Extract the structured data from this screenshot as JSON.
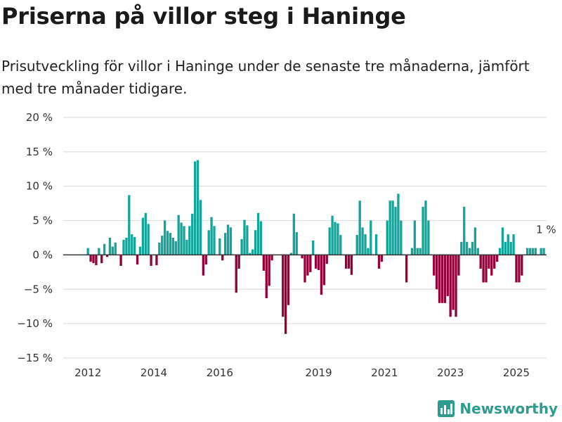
{
  "header": {
    "title": "Priserna på villor steg i Haninge",
    "subtitle": "Prisutveckling för villor i Haninge under de senaste tre månaderna, jämfört med tre månader tidigare."
  },
  "brand": {
    "name": "Newsworthy",
    "color": "#2e9b8f",
    "icon": "bar-chart-logo-icon"
  },
  "chart_data": {
    "type": "bar",
    "x_start": "2012-01",
    "x_end": "2025-08",
    "xlim": [
      "2011-04",
      "2025-12"
    ],
    "ylim": [
      -15,
      20
    ],
    "yticks": [
      -15,
      -10,
      -5,
      0,
      5,
      10,
      15,
      20
    ],
    "ytick_labels": [
      "−15 %",
      "−10 %",
      "−5 %",
      "0 %",
      "5 %",
      "10 %",
      "15 %",
      "20 %"
    ],
    "xticks": [
      "2012",
      "2014",
      "2016",
      "2019",
      "2021",
      "2023",
      "2025"
    ],
    "values": [
      1,
      -1,
      -1.2,
      -1.5,
      1,
      -1.2,
      1.6,
      -0.3,
      2.5,
      1.2,
      1.8,
      0,
      -1.6,
      2.2,
      2.5,
      8.7,
      3,
      2.6,
      -1.4,
      1.2,
      5.4,
      6.1,
      4.5,
      -1.6,
      0,
      -1.5,
      1.8,
      2.8,
      5,
      3.5,
      3.2,
      2.5,
      2,
      5.8,
      4.7,
      4.2,
      2.2,
      4.2,
      6,
      13.6,
      13.8,
      8,
      -3,
      -1.4,
      3.6,
      5.5,
      4.2,
      0,
      2.4,
      -0.8,
      3.2,
      4.4,
      4,
      0,
      -5.5,
      -2,
      2.3,
      5.1,
      4.3,
      0.3,
      0.8,
      3.6,
      6.1,
      4.9,
      -2.3,
      -6.3,
      -4.5,
      -0.8,
      0,
      0,
      0,
      -9,
      -11.5,
      -7.3,
      0.3,
      6,
      3.3,
      0,
      -0.5,
      -4,
      -3,
      -2.5,
      2.1,
      -2,
      -2.2,
      -5.8,
      -4.4,
      -1.3,
      4,
      5.7,
      4.8,
      4.6,
      2.9,
      0,
      -2,
      -2,
      -2.9,
      0,
      2.9,
      7.9,
      4,
      3,
      1,
      5,
      0,
      3,
      -2,
      -1,
      0,
      5,
      7.9,
      7.9,
      7,
      8.9,
      5,
      0,
      -4,
      0,
      1,
      5,
      1,
      1,
      7,
      7.9,
      5,
      0,
      -3,
      -5,
      -7,
      -7,
      -7,
      -6,
      -9,
      -8,
      -9,
      -3,
      1.9,
      7,
      1.9,
      1,
      1.9,
      4,
      1,
      -2,
      -4,
      -4,
      -2,
      -3,
      -2,
      -1,
      1,
      4,
      1.9,
      3,
      1.9,
      3,
      -4,
      -4,
      -3,
      0,
      1,
      1,
      1,
      1,
      0,
      1,
      1
    ],
    "colors": {
      "positive": "#15a49a",
      "negative": "#93003a"
    },
    "annotation": {
      "text": "1 %",
      "index": 163
    }
  }
}
